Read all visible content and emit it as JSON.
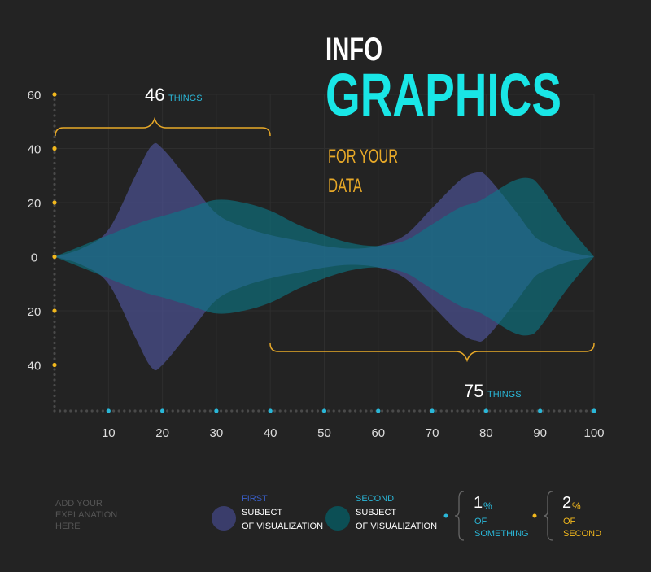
{
  "chart_data": {
    "type": "mirrored-area",
    "title": "INFO",
    "subtitle": "GRAPHICS",
    "tagline": [
      "FOR YOUR",
      "DATA"
    ],
    "x": [
      0,
      5,
      10,
      15,
      18,
      20,
      25,
      30,
      35,
      40,
      45,
      50,
      55,
      60,
      65,
      70,
      75,
      78,
      80,
      85,
      88,
      90,
      95,
      100
    ],
    "series": [
      {
        "name": "FIRST",
        "description": [
          "SUBJECT",
          "OF VISUALIZATION"
        ],
        "color": "#4a4f8c",
        "legend_color": "#3a3d6b",
        "name_color": "#3a5fc9",
        "values": [
          0,
          3,
          10,
          30,
          41,
          40,
          28,
          16,
          11,
          8,
          6,
          4,
          3,
          4,
          8,
          18,
          28,
          31,
          30,
          18,
          10,
          6,
          2,
          0
        ]
      },
      {
        "name": "SECOND",
        "description": [
          "SUBJECT",
          "OF VISUALIZATION"
        ],
        "color": "#0a7a88",
        "legend_color": "#0c4f55",
        "name_color": "#2ab7d8",
        "values": [
          0,
          4,
          8,
          12,
          14,
          15,
          18,
          21,
          20,
          17,
          12,
          8,
          5,
          4,
          6,
          12,
          18,
          20,
          22,
          28,
          29,
          26,
          12,
          0
        ]
      }
    ],
    "xlim": [
      0,
      100
    ],
    "xticks": [
      10,
      20,
      30,
      40,
      50,
      60,
      70,
      80,
      90,
      100
    ],
    "ylim": [
      -57,
      60
    ],
    "yticks": [
      60,
      40,
      20,
      0,
      {
        "value": -20,
        "label": "20"
      },
      {
        "value": -40,
        "label": "40"
      }
    ],
    "grid": true,
    "annotations": [
      {
        "number": "46",
        "unit": "THINGS"
      },
      {
        "number": "75",
        "unit": "THINGS"
      }
    ],
    "stats": [
      {
        "number": "1",
        "unit": "%",
        "lines": [
          "OF",
          "SOMETHING"
        ],
        "color": "#2ab7d8"
      },
      {
        "number": "2",
        "unit": "%",
        "lines": [
          "OF",
          "SECOND"
        ],
        "color": "#f2b81d"
      }
    ],
    "note": [
      "ADD YOUR",
      "EXPLANATION",
      "HERE"
    ]
  }
}
